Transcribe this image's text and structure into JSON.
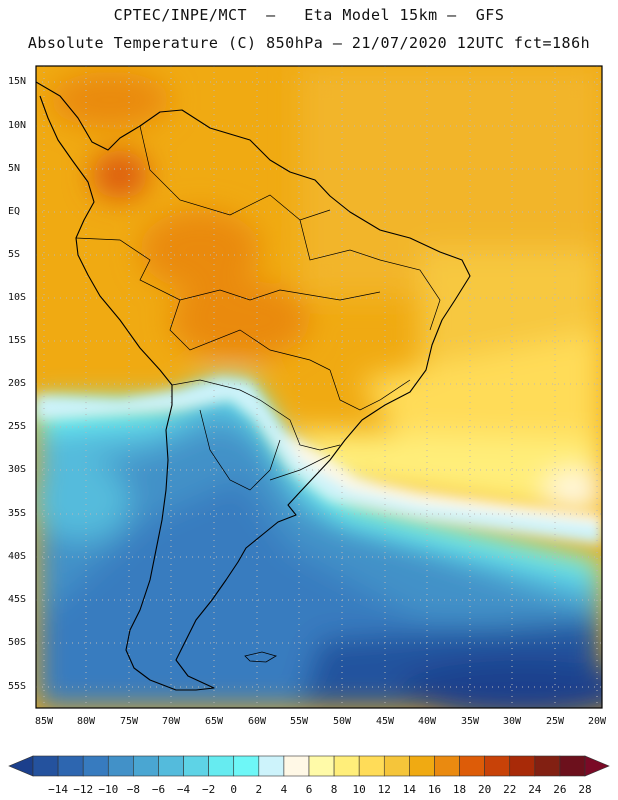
{
  "header": {
    "line1": "CPTEC/INPE/MCT  –   Eta Model 15km –  GFS",
    "line2": "Absolute Temperature (C) 850hPa – 21/07/2020 12UTC fct=186h"
  },
  "map": {
    "lat_labels": [
      "15N",
      "10N",
      "5N",
      "EQ",
      "5S",
      "10S",
      "15S",
      "20S",
      "25S",
      "30S",
      "35S",
      "40S",
      "45S",
      "50S",
      "55S"
    ],
    "lon_labels": [
      "85W",
      "80W",
      "75W",
      "70W",
      "65W",
      "60W",
      "55W",
      "50W",
      "45W",
      "40W",
      "35W",
      "30W",
      "25W",
      "20W"
    ]
  },
  "colorbar": {
    "labels": [
      "−14",
      "−12",
      "−10",
      "−8",
      "−6",
      "−4",
      "−2",
      "0",
      "2",
      "4",
      "6",
      "8",
      "10",
      "12",
      "14",
      "16",
      "18",
      "20",
      "22",
      "24",
      "26",
      "28"
    ],
    "colors": [
      "#1b3f8c",
      "#24529e",
      "#2d66b0",
      "#377bbf",
      "#4291c8",
      "#4aa6d2",
      "#54bbdc",
      "#5ed3e6",
      "#66ebf0",
      "#6ef7f7",
      "#cdf3fb",
      "#fff8e6",
      "#fffaa8",
      "#ffee7a",
      "#ffdc58",
      "#f5c53a",
      "#f0aa12",
      "#ea8a10",
      "#dd5c08",
      "#c84208",
      "#a82a08",
      "#822012",
      "#6c101c",
      "#7a0a26"
    ]
  }
}
